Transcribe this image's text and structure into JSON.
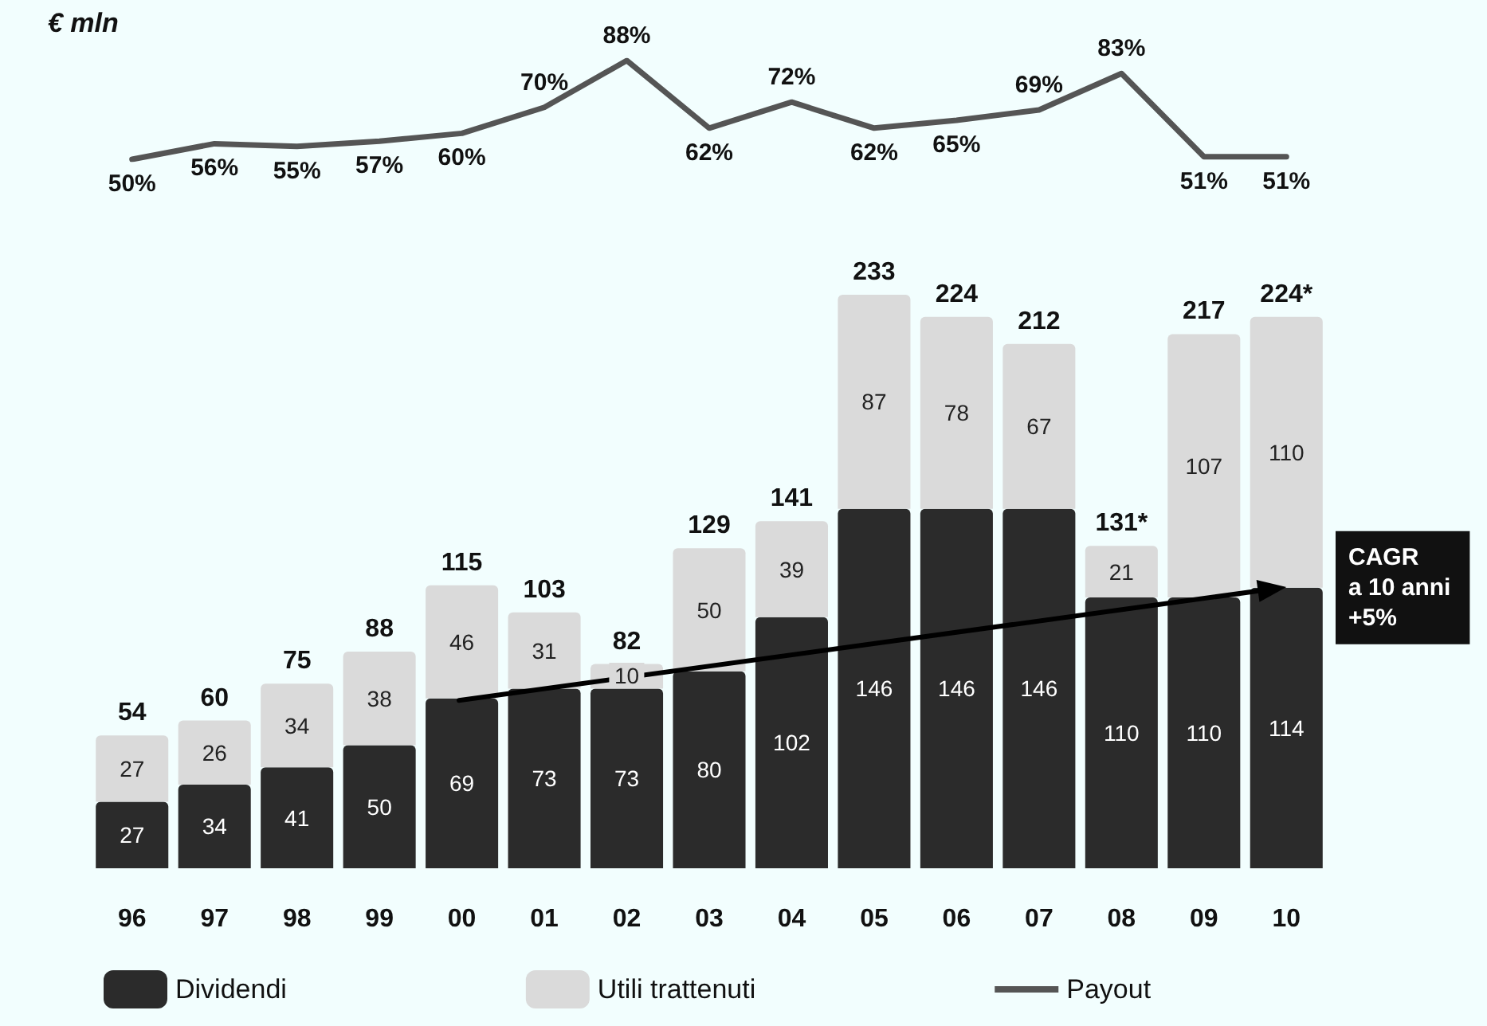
{
  "chart_data": [
    {
      "type": "line",
      "categories": [
        "96",
        "97",
        "98",
        "99",
        "00",
        "01",
        "02",
        "03",
        "04",
        "05",
        "06",
        "07",
        "08",
        "09",
        "10"
      ],
      "series": [
        {
          "name": "Payout",
          "color": "#555555",
          "values": [
            50,
            56,
            55,
            57,
            60,
            70,
            88,
            62,
            72,
            62,
            65,
            69,
            83,
            51,
            51
          ],
          "value_labels": [
            "50%",
            "56%",
            "55%",
            "57%",
            "60%",
            "70%",
            "88%",
            "62%",
            "72%",
            "62%",
            "65%",
            "69%",
            "83%",
            "51%",
            "51%"
          ]
        }
      ],
      "annotations": [
        "€ mln"
      ],
      "marker": "none",
      "tick_labels": false
    },
    {
      "type": "bar",
      "stacked": true,
      "categories": [
        "96",
        "97",
        "98",
        "99",
        "00",
        "01",
        "02",
        "03",
        "04",
        "05",
        "06",
        "07",
        "08",
        "09",
        "10"
      ],
      "series": [
        {
          "name": "Dividendi",
          "color": "#2b2b2b",
          "values": [
            27,
            34,
            41,
            50,
            69,
            73,
            73,
            80,
            102,
            146,
            146,
            146,
            110,
            110,
            114
          ],
          "value_labels": [
            "27",
            "34",
            "41",
            "50",
            "69",
            "73",
            "73",
            "80",
            "102",
            "146",
            "146",
            "146",
            "110",
            "110",
            "114"
          ]
        },
        {
          "name": "Utili trattenuti",
          "color": "#dadada",
          "values": [
            27,
            26,
            34,
            38,
            46,
            31,
            10,
            50,
            39,
            87,
            78,
            67,
            21,
            107,
            110
          ],
          "value_labels": [
            "27",
            "26",
            "34",
            "38",
            "46",
            "31",
            "10",
            "50",
            "39",
            "87",
            "78",
            "67",
            "21",
            "107",
            "110"
          ]
        }
      ],
      "totals": [
        "54",
        "60",
        "75",
        "88",
        "115",
        "103",
        "82",
        "129",
        "141",
        "233",
        "224",
        "212",
        "131*",
        "217",
        "224*"
      ],
      "annotations": [
        {
          "text": "CAGR\na 10 anni\n+5%",
          "x": "10",
          "y": 114
        }
      ],
      "legend": "bottom"
    }
  ]
}
